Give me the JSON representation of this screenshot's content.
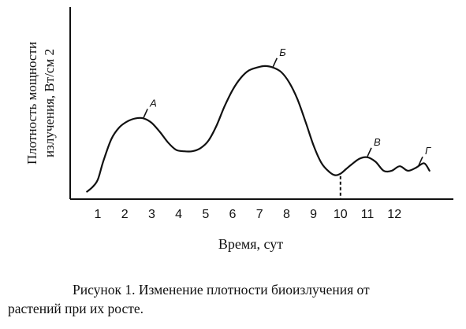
{
  "chart_data": {
    "type": "line",
    "xlabel": "Время, сут",
    "ylabel_line1": "Плотность мощности",
    "ylabel_line2": "излучения, Вт/см 2",
    "x_ticks": [
      "1",
      "2",
      "3",
      "4",
      "5",
      "6",
      "7",
      "8",
      "9",
      "10",
      "11",
      "12"
    ],
    "xlim": [
      0.4,
      13.4
    ],
    "ylim": [
      0,
      100
    ],
    "series": [
      {
        "x": [
          0.6,
          0.8,
          1.0,
          1.2,
          1.5,
          1.8,
          2.1,
          2.4,
          2.7,
          3.0,
          3.3,
          3.6,
          3.9,
          4.2,
          4.5,
          4.8,
          5.1,
          5.4,
          5.7,
          6.0,
          6.3,
          6.6,
          6.9,
          7.2,
          7.5,
          7.8,
          8.1,
          8.4,
          8.7,
          9.0,
          9.3,
          9.6,
          9.8,
          10.0,
          10.2,
          10.4,
          10.7,
          11.0,
          11.3,
          11.6,
          11.9,
          12.2,
          12.5,
          12.8,
          13.1,
          13.3
        ],
        "y": [
          5,
          8,
          13,
          25,
          40,
          48,
          52,
          54,
          54,
          51,
          45,
          38,
          33,
          32,
          32,
          34,
          39,
          49,
          62,
          73,
          81,
          86,
          88,
          89,
          88,
          85,
          78,
          67,
          52,
          36,
          24,
          18,
          16,
          17,
          20,
          23,
          27,
          28,
          25,
          19,
          19,
          22,
          19,
          21,
          24,
          19
        ]
      }
    ],
    "annotations": [
      {
        "label": "А",
        "x": 2.7,
        "y": 54
      },
      {
        "label": "Б",
        "x": 7.5,
        "y": 88
      },
      {
        "label": "В",
        "x": 11.0,
        "y": 28
      },
      {
        "label": "Г",
        "x": 12.9,
        "y": 22
      }
    ],
    "marker_line_x": 10.0,
    "line_color": "#111111"
  },
  "caption": {
    "line1": "Рисунок 1. Изменение плотности биоизлучения от",
    "line2": "растений при их росте."
  }
}
